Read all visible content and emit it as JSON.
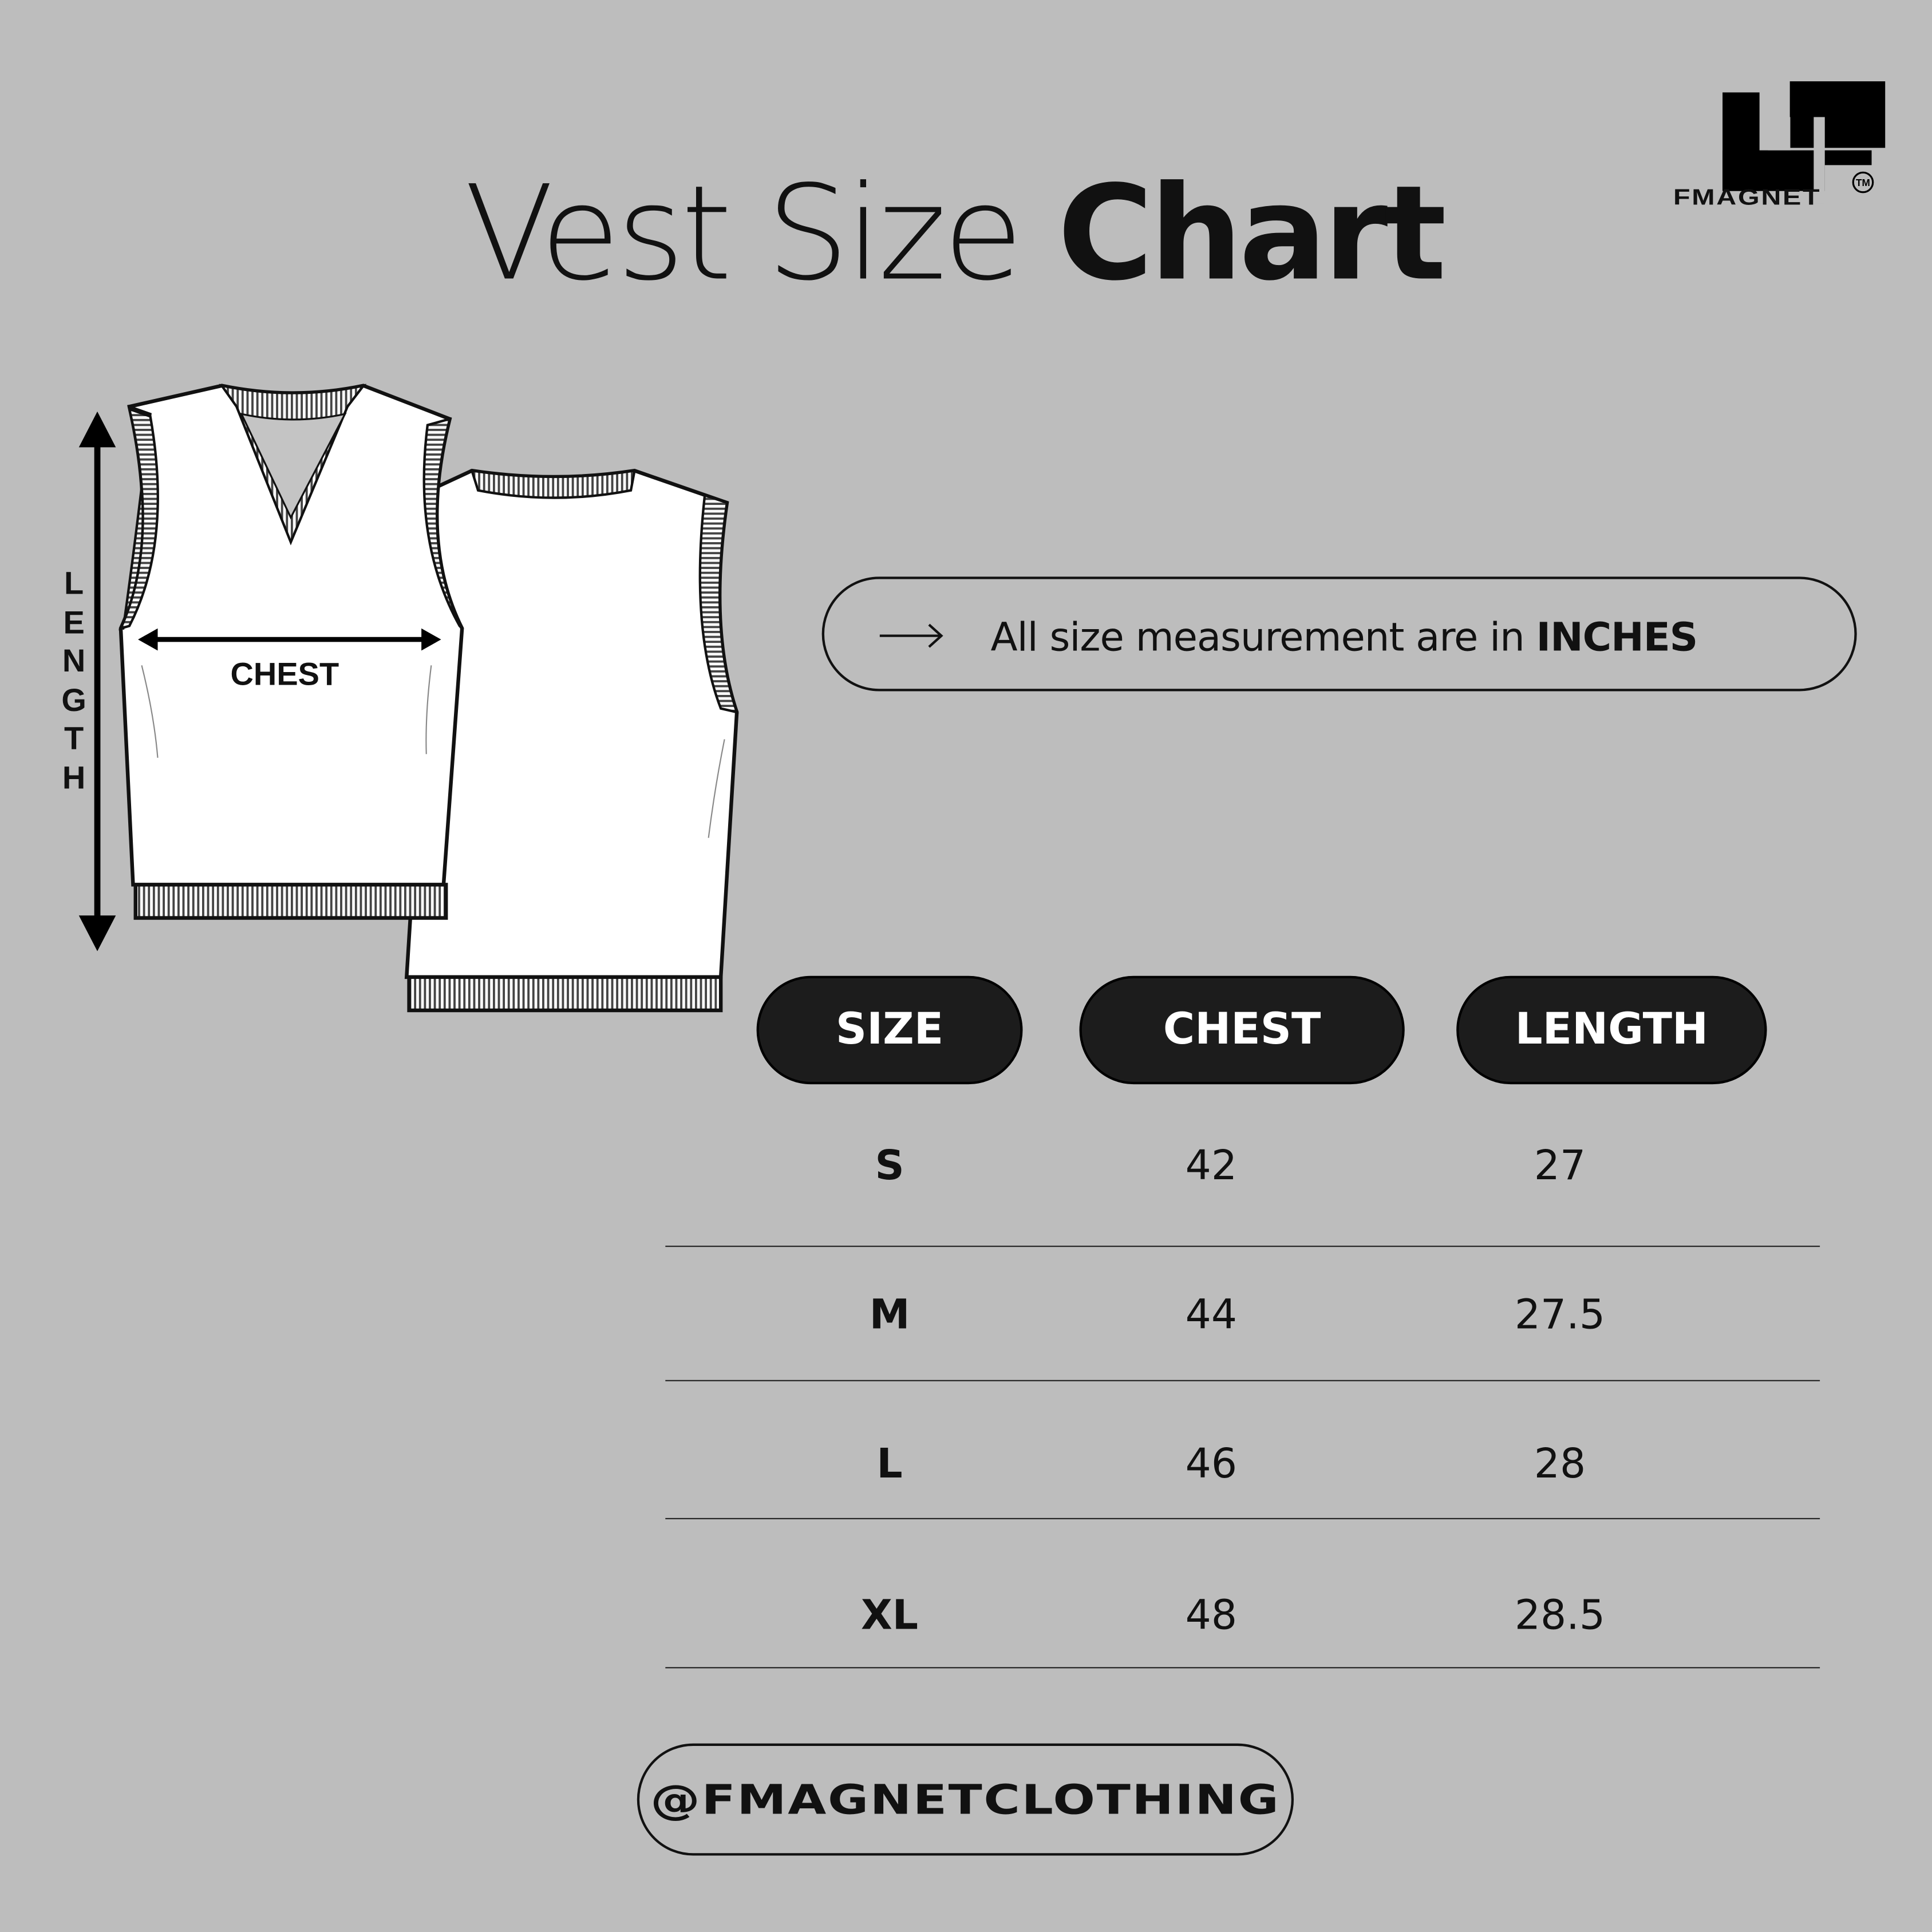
{
  "title": {
    "light": "Vest Size ",
    "bold": "Chart"
  },
  "brand": {
    "name": "FMAGNET",
    "trademark": "TM",
    "handle": "@FMAGNETCLOTHING"
  },
  "notice": {
    "icon": "arrow-right-icon",
    "text": "All size measurement are in ",
    "unit": "INCHES"
  },
  "diagram": {
    "chest_label": "CHEST",
    "length_label": [
      "L",
      "E",
      "N",
      "G",
      "T",
      "H"
    ]
  },
  "table": {
    "headers": [
      "SIZE",
      "CHEST",
      "LENGTH"
    ],
    "rows": [
      {
        "size": "S",
        "chest": "42",
        "length": "27"
      },
      {
        "size": "M",
        "chest": "44",
        "length": "27.5"
      },
      {
        "size": "L",
        "chest": "46",
        "length": "28"
      },
      {
        "size": "XL",
        "chest": "48",
        "length": "28.5"
      }
    ]
  },
  "colors": {
    "background": "#bdbdbd",
    "pill": "#1c1c1c",
    "text": "#111111"
  }
}
